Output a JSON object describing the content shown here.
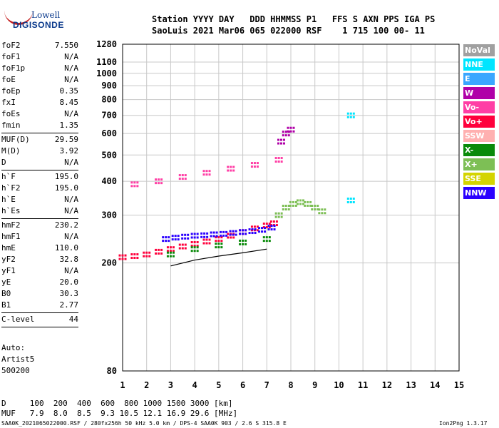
{
  "logo": {
    "top": "Lowell",
    "bottom": "DIGISONDE"
  },
  "header": {
    "row1": "Station YYYY DAY   DDD HHMMSS P1   FFS S AXN PPS IGA PS",
    "row2": "SaoLuis 2021 Mar06 065 022000 RSF    1 715 100 00- 11"
  },
  "params": [
    {
      "label": "foF2",
      "value": "7.550"
    },
    {
      "label": "foF1",
      "value": "N/A"
    },
    {
      "label": "foF1p",
      "value": "N/A"
    },
    {
      "label": "foE",
      "value": "N/A"
    },
    {
      "label": "foEp",
      "value": "0.35"
    },
    {
      "label": "fxI",
      "value": "8.45"
    },
    {
      "label": "foEs",
      "value": "N/A"
    },
    {
      "label": "fmin",
      "value": "1.35"
    },
    {
      "sep": true
    },
    {
      "label": "MUF(D)",
      "value": "29.59"
    },
    {
      "label": "M(D)",
      "value": "3.92"
    },
    {
      "label": "D",
      "value": "N/A"
    },
    {
      "sep": true
    },
    {
      "label": "h`F",
      "value": "195.0"
    },
    {
      "label": "h`F2",
      "value": "195.0"
    },
    {
      "label": "h`E",
      "value": "N/A"
    },
    {
      "label": "h`Es",
      "value": "N/A"
    },
    {
      "sep": true
    },
    {
      "label": "hmF2",
      "value": "230.2"
    },
    {
      "label": "hmF1",
      "value": "N/A"
    },
    {
      "label": "hmE",
      "value": "110.0"
    },
    {
      "label": "yF2",
      "value": "32.8"
    },
    {
      "label": "yF1",
      "value": "N/A"
    },
    {
      "label": "yE",
      "value": "20.0"
    },
    {
      "label": "B0",
      "value": "30.3"
    },
    {
      "label": "B1",
      "value": "2.77"
    },
    {
      "sep": true
    },
    {
      "label": "C-level",
      "value": "44"
    },
    {
      "sep": true
    }
  ],
  "auto": [
    "Auto:",
    "Artist5",
    "500200"
  ],
  "footer": {
    "d_row": "D     100  200  400  600  800 1000 1500 3000 [km]",
    "muf_row": "MUF   7.9  8.0  8.5  9.3 10.5 12.1 16.9 29.6 [MHz]",
    "file": "SAA0K_2021065022000.RSF / 280fx256h 50 kHz 5.0 km / DPS-4 SAA0K 903 / 2.6 S 315.8 E",
    "version": "Ion2Png 1.3.17"
  },
  "legend": [
    {
      "label": "NoVal",
      "color": "#a0a0a0"
    },
    {
      "label": "NNE",
      "color": "#00e5ff"
    },
    {
      "label": "E",
      "color": "#3aa6ff"
    },
    {
      "label": "W",
      "color": "#b000a8"
    },
    {
      "label": "Vo-",
      "color": "#ff3ea5"
    },
    {
      "label": "Vo+",
      "color": "#ff003c"
    },
    {
      "label": "SSW",
      "color": "#ffb0b0"
    },
    {
      "label": "X-",
      "color": "#0a8a0a"
    },
    {
      "label": "X+",
      "color": "#7dbf55"
    },
    {
      "label": "SSE",
      "color": "#d4d400"
    },
    {
      "label": "NNW",
      "color": "#2a00ff"
    }
  ],
  "chart_data": {
    "type": "scatter",
    "xlim": [
      1,
      15
    ],
    "ylim": [
      80,
      1280
    ],
    "x_ticks": [
      1,
      2,
      3,
      4,
      5,
      6,
      7,
      8,
      9,
      10,
      11,
      12,
      13,
      14,
      15
    ],
    "y_ticks": [
      80,
      200,
      300,
      400,
      500,
      600,
      700,
      800,
      900,
      1000,
      1100,
      1280
    ],
    "y_scale": "log",
    "grid": true,
    "series": [
      {
        "name": "Vo+",
        "color": "#ff003c",
        "x": [
          1.0,
          1.5,
          2.0,
          2.5,
          3.0,
          3.5,
          4.0,
          4.5,
          5.0,
          5.5,
          6.0,
          6.5,
          7.0,
          7.3
        ],
        "y": [
          210,
          212,
          215,
          220,
          225,
          230,
          235,
          240,
          245,
          252,
          260,
          268,
          275,
          280
        ]
      },
      {
        "name": "NNW",
        "color": "#2a00ff",
        "x": [
          2.8,
          3.2,
          3.6,
          4.0,
          4.4,
          4.8,
          5.2,
          5.6,
          6.0,
          6.4,
          6.8,
          7.2
        ],
        "y": [
          245,
          248,
          250,
          252,
          253,
          255,
          256,
          258,
          260,
          262,
          265,
          270
        ]
      },
      {
        "name": "X+",
        "color": "#7dbf55",
        "x": [
          7.5,
          7.8,
          8.1,
          8.4,
          8.7,
          9.0,
          9.3
        ],
        "y": [
          300,
          320,
          330,
          335,
          330,
          320,
          310
        ]
      },
      {
        "name": "X-",
        "color": "#0a8a0a",
        "x": [
          3.0,
          4.0,
          5.0,
          6.0,
          7.0
        ],
        "y": [
          215,
          225,
          232,
          238,
          245
        ]
      },
      {
        "name": "Vo-",
        "color": "#ff3ea5",
        "x": [
          1.5,
          2.5,
          3.5,
          4.5,
          5.5,
          6.5,
          7.5
        ],
        "y": [
          390,
          400,
          415,
          430,
          445,
          460,
          480
        ]
      },
      {
        "name": "W",
        "color": "#b000a8",
        "x": [
          7.6,
          7.8,
          8.0
        ],
        "y": [
          560,
          600,
          620
        ]
      },
      {
        "name": "NNE",
        "color": "#00e5ff",
        "x": [
          10.5,
          10.5
        ],
        "y": [
          700,
          340
        ]
      }
    ]
  }
}
